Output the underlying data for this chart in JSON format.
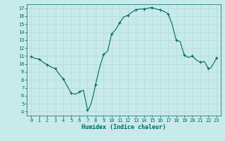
{
  "xlabel": "Humidex (Indice chaleur)",
  "background_color": "#c8eaea",
  "line_color": "#006666",
  "grid_color": "#b0d8d4",
  "xlim": [
    -0.5,
    23.5
  ],
  "ylim": [
    3.5,
    17.5
  ],
  "xticks": [
    0,
    1,
    2,
    3,
    4,
    5,
    6,
    7,
    8,
    9,
    10,
    11,
    12,
    13,
    14,
    15,
    16,
    17,
    18,
    19,
    20,
    21,
    22,
    23
  ],
  "yticks": [
    4,
    5,
    6,
    7,
    8,
    9,
    10,
    11,
    12,
    13,
    14,
    15,
    16,
    17
  ],
  "x_data": [
    0,
    0.5,
    1,
    1.5,
    2,
    2.5,
    3,
    3.5,
    4,
    4.5,
    5,
    5.25,
    5.5,
    5.75,
    6,
    6.25,
    6.5,
    6.75,
    7,
    7.25,
    7.5,
    7.75,
    8,
    8.5,
    9,
    9.5,
    10,
    10.5,
    11,
    11.5,
    12,
    12.5,
    13,
    13.5,
    14,
    14.5,
    15,
    15.5,
    16,
    16.5,
    17,
    17.5,
    18,
    18.5,
    19,
    19.5,
    20,
    20.5,
    21,
    21.5,
    22,
    22.3,
    22.6,
    22.9,
    23
  ],
  "y_data": [
    10.9,
    10.7,
    10.6,
    10.2,
    9.9,
    9.6,
    9.4,
    8.7,
    8.1,
    7.2,
    6.3,
    6.25,
    6.2,
    6.3,
    6.5,
    6.6,
    6.7,
    5.5,
    4.2,
    4.5,
    5.2,
    6.2,
    7.4,
    9.5,
    11.2,
    11.6,
    13.8,
    14.3,
    15.2,
    15.9,
    16.1,
    16.5,
    16.8,
    16.9,
    16.9,
    17.0,
    17.1,
    16.9,
    16.8,
    16.6,
    16.3,
    15.0,
    13.0,
    12.8,
    11.1,
    10.8,
    11.0,
    10.5,
    10.2,
    10.3,
    9.4,
    9.5,
    10.0,
    10.5,
    10.8
  ],
  "marker_x": [
    0,
    1,
    2,
    3,
    4,
    5,
    6,
    7,
    8,
    9,
    10,
    11,
    12,
    13,
    14,
    15,
    16,
    17,
    18,
    19,
    20,
    21,
    22,
    23
  ],
  "marker_y": [
    10.9,
    10.6,
    9.9,
    9.4,
    8.1,
    6.3,
    6.5,
    4.2,
    7.4,
    11.2,
    13.8,
    15.2,
    16.1,
    16.8,
    16.9,
    17.1,
    16.8,
    16.3,
    13.0,
    11.1,
    11.0,
    10.2,
    9.4,
    10.8
  ]
}
